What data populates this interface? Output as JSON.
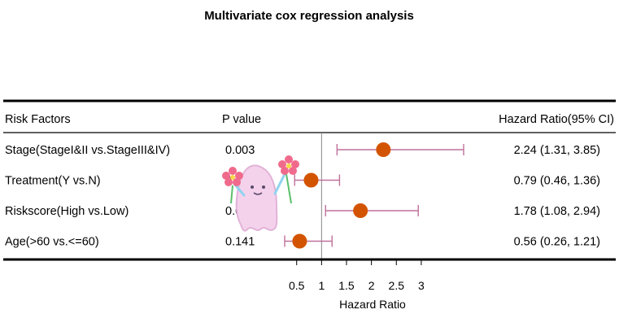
{
  "chart_data": {
    "type": "forest",
    "title": "Multivariate cox regression analysis",
    "columns": {
      "factor": "Risk Factors",
      "pvalue": "P value",
      "hr": "Hazard Ratio(95% CI)"
    },
    "rows": [
      {
        "factor": "Stage(StageI&II vs.StageIII&IV)",
        "p": "0.003",
        "hr": 2.24,
        "lower": 1.31,
        "upper": 3.85,
        "hr_text": "2.24 (1.31, 3.85)"
      },
      {
        "factor": "Treatment(Y vs.N)",
        "p": "0.4",
        "hr": 0.79,
        "lower": 0.46,
        "upper": 1.36,
        "hr_text": "0.79 (0.46, 1.36)"
      },
      {
        "factor": "Riskscore(High vs.Low)",
        "p": "0.0",
        "hr": 1.78,
        "lower": 1.08,
        "upper": 2.94,
        "hr_text": "1.78 (1.08, 2.94)"
      },
      {
        "factor": "Age(>60 vs.<=60)",
        "p": "0.141",
        "hr": 0.56,
        "lower": 0.26,
        "upper": 1.21,
        "hr_text": "0.56 (0.26, 1.21)"
      }
    ],
    "xlabel": "Hazard Ratio",
    "xticks": [
      0.5,
      1,
      1.5,
      2,
      2.5,
      3
    ],
    "xlim": [
      0.26,
      3.85
    ],
    "reference": 1,
    "colors": {
      "point": "#D35400",
      "ci": "#C0709A",
      "ref": "#888888",
      "rule": "#000000"
    },
    "grid": false,
    "legend": "none"
  }
}
